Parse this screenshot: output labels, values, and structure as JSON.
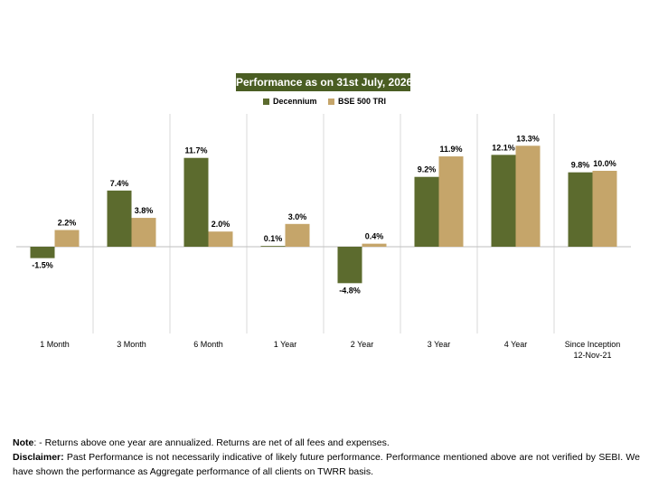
{
  "colors": {
    "series1": "#5c6b2e",
    "series2": "#c5a56a",
    "title_bg": "#4a5d23",
    "grid": "#d9d9d9",
    "axis": "#bfbfbf"
  },
  "chart_data": {
    "type": "bar",
    "title": "Performance as on 31st July, 2026",
    "categories": [
      "1 Month",
      "3 Month",
      "6 Month",
      "1 Year",
      "2 Year",
      "3 Year",
      "4 Year",
      "Since Inception\n12-Nov-21"
    ],
    "series": [
      {
        "name": "Decennium",
        "values": [
          -1.5,
          7.4,
          11.7,
          0.1,
          -4.8,
          9.2,
          12.1,
          9.8
        ],
        "labels": [
          "-1.5%",
          "7.4%",
          "11.7%",
          "0.1%",
          "-4.8%",
          "9.2%",
          "12.1%",
          "9.8%"
        ]
      },
      {
        "name": "BSE 500 TRI",
        "values": [
          2.2,
          3.8,
          2.0,
          3.0,
          0.4,
          11.9,
          13.3,
          10.0
        ],
        "labels": [
          "2.2%",
          "3.8%",
          "2.0%",
          "3.0%",
          "0.4%",
          "11.9%",
          "13.3%",
          "10.0%"
        ]
      }
    ],
    "legend_position": "top-center",
    "grid": "vertical separators"
  },
  "notes": {
    "note_label": "Note",
    "note_text": ": - Returns above one year are annualized. Returns are net of all fees and expenses.",
    "disclaimer_label": "Disclaimer:",
    "disclaimer_text": " Past Performance is not necessarily indicative of likely future performance. Performance mentioned above are not verified by SEBI. We have shown the performance as Aggregate performance of all clients on TWRR basis."
  }
}
